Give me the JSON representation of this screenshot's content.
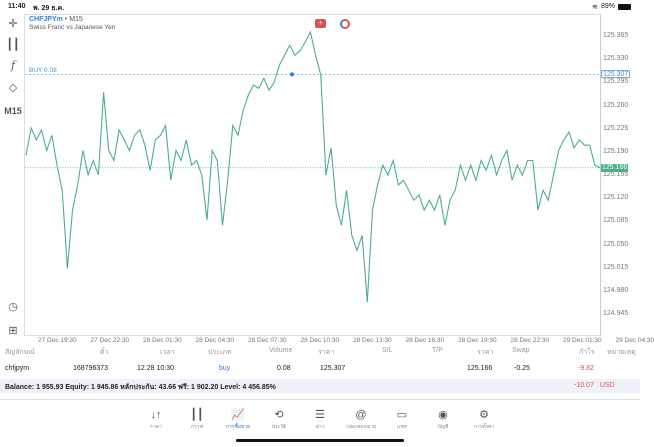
{
  "status": {
    "time": "11:40",
    "date": "พ. 29 ธ.ค.",
    "battery": "89%"
  },
  "chart": {
    "symbol": "CHFJPYm",
    "timeframe": "M15",
    "description": "Swiss Franc vs Japanese Yen",
    "buy_label": "BUY 0.08",
    "buy_price": 125.307,
    "current_price": 125.166,
    "timeframe_button": "M15",
    "line_color": "#4caf87",
    "buy_line_color": "#4a90d9",
    "y_ticks": [
      "125.365",
      "125.330",
      "125.295",
      "125.260",
      "125.225",
      "125.190",
      "125.155",
      "125.120",
      "125.085",
      "125.050",
      "125.015",
      "124.980",
      "124.945"
    ],
    "x_ticks": [
      "27 Dec 19:30",
      "27 Dec 22:30",
      "28 Dec 01:30",
      "28 Dec 04:30",
      "28 Dec 07:30",
      "28 Dec 10:30",
      "28 Dec 13:30",
      "28 Dec 16:30",
      "28 Dec 19:30",
      "28 Dec 22:30",
      "29 Dec 01:30",
      "29 Dec 04:30"
    ],
    "prices": [
      125.185,
      125.226,
      125.208,
      125.223,
      125.192,
      125.215,
      125.17,
      125.132,
      125.014,
      125.102,
      125.14,
      125.192,
      125.155,
      125.177,
      125.155,
      125.28,
      125.192,
      125.177,
      125.223,
      125.208,
      125.192,
      125.215,
      125.223,
      125.2,
      125.162,
      125.208,
      125.215,
      125.23,
      125.147,
      125.192,
      125.177,
      125.208,
      125.17,
      125.177,
      125.155,
      125.087,
      125.192,
      125.177,
      125.079,
      125.147,
      125.23,
      125.215,
      125.253,
      125.276,
      125.291,
      125.286,
      125.301,
      125.283,
      125.295,
      125.321,
      125.336,
      125.351,
      125.336,
      125.343,
      125.356,
      125.371,
      125.336,
      125.306,
      125.155,
      125.196,
      125.109,
      125.079,
      125.132,
      125.064,
      125.041,
      125.064,
      124.963,
      125.102,
      125.14,
      125.17,
      125.155,
      125.177,
      125.14,
      125.147,
      125.132,
      125.117,
      125.125,
      125.102,
      125.117,
      125.102,
      125.125,
      125.079,
      125.117,
      125.132,
      125.17,
      125.147,
      125.17,
      125.147,
      125.177,
      125.162,
      125.185,
      125.155,
      125.177,
      125.192,
      125.147,
      125.17,
      125.155,
      125.177,
      125.177,
      125.102,
      125.132,
      125.117,
      125.155,
      125.192,
      125.208,
      125.22,
      125.196,
      125.208,
      125.2,
      125.2,
      125.17,
      125.166
    ]
  },
  "table": {
    "headers": [
      "สัญลักษณ์",
      "ตั๋ว",
      "เวลา",
      "ประเภท",
      "Volume",
      "ราคา",
      "S/L",
      "T/P",
      "ราคา",
      "Swap",
      "กำไร",
      "หมายเหตุ"
    ],
    "row": {
      "symbol": "chfjpym",
      "ticket": "168796373",
      "time": "12.28 10:30",
      "type": "buy",
      "volume": "0.08",
      "open_price": "125.307",
      "sl": "",
      "tp": "",
      "price": "125.166",
      "swap": "-0.25",
      "profit": "-9.82"
    }
  },
  "balance": {
    "text": "Balance: 1 955.93 Equity: 1 945.86 หลักประกัน: 43.66 ฟรี: 1 902.20 Level: 4 456.85%",
    "total": "-10.07",
    "currency": "USD"
  },
  "nav": [
    {
      "label": "ราคา",
      "icon": "↓↑"
    },
    {
      "label": "กราฟ",
      "icon": "┃┃"
    },
    {
      "label": "การซื้อขาย",
      "icon": "📈"
    },
    {
      "label": "ประวัติ",
      "icon": "⟲"
    },
    {
      "label": "ข่าว",
      "icon": "☰"
    },
    {
      "label": "กล่องจดหมาย",
      "icon": "@"
    },
    {
      "label": "แชท",
      "icon": "▭"
    },
    {
      "label": "บัญชี",
      "icon": "◉"
    },
    {
      "label": "การตั้งค่า",
      "icon": "⚙"
    }
  ],
  "active_nav": 2
}
